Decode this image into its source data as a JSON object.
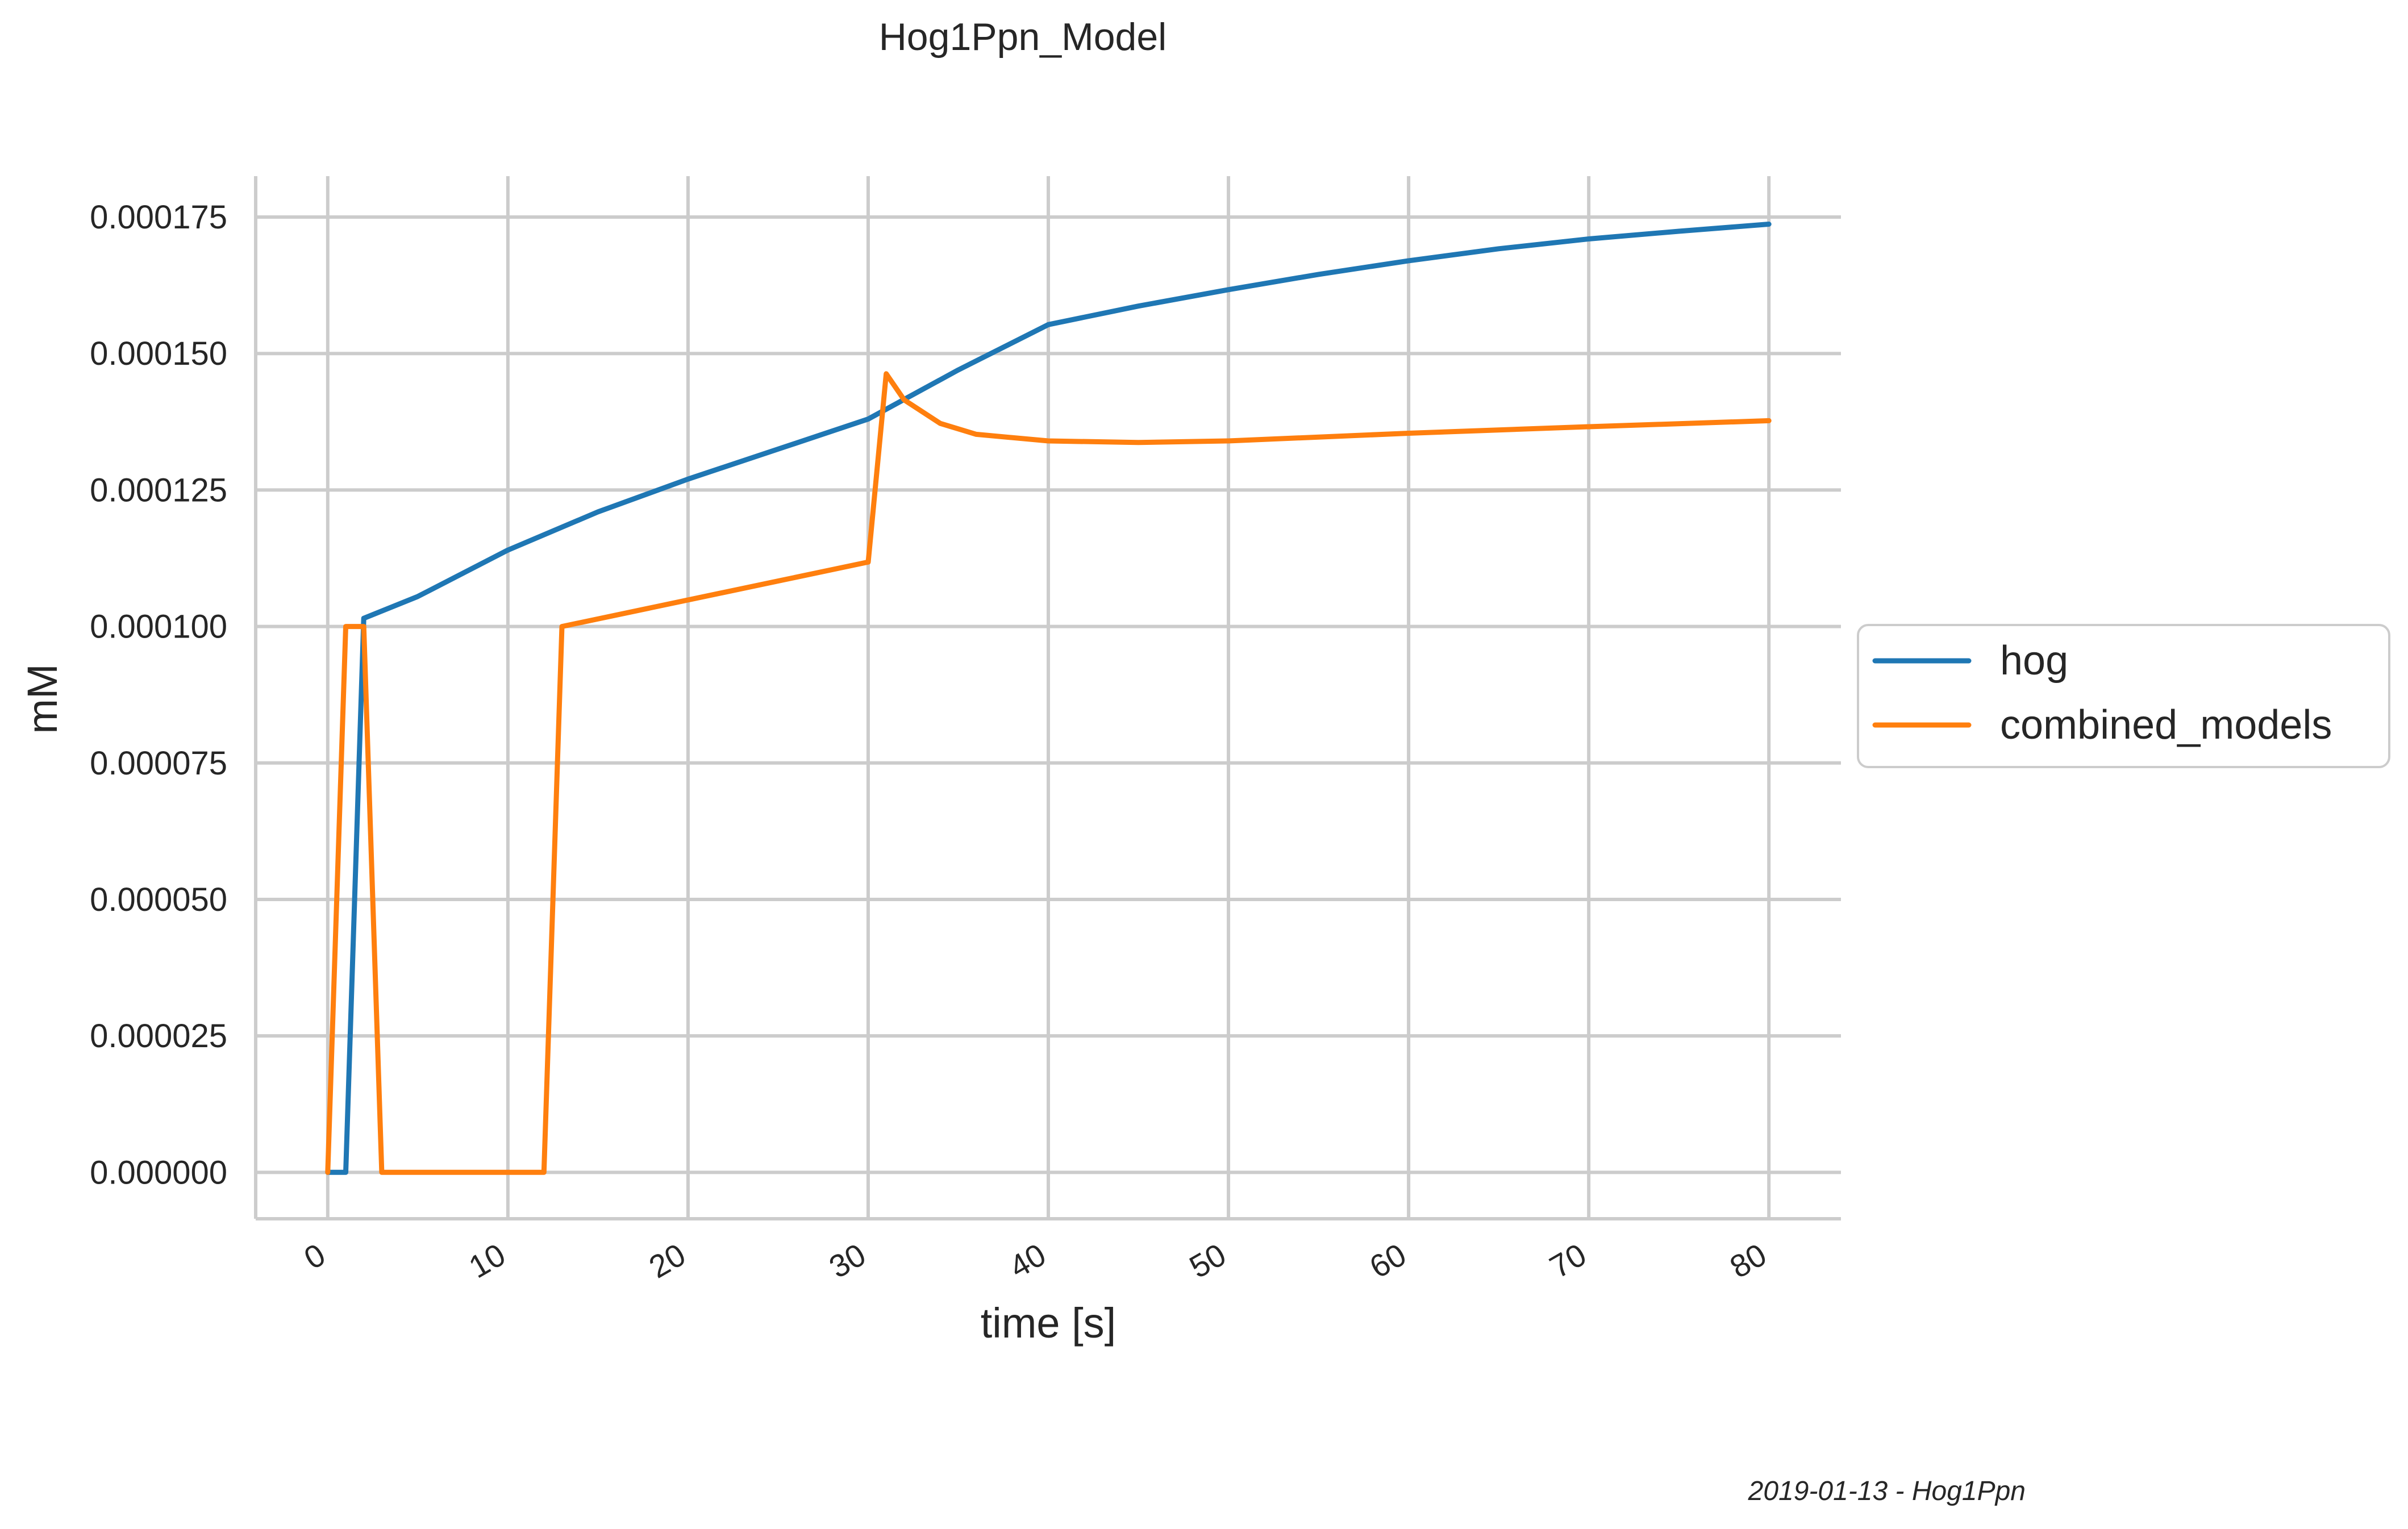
{
  "chart_data": {
    "type": "line",
    "title": "Hog1Ppn_Model",
    "xlabel": "time [s]",
    "ylabel": "mM",
    "xlim": [
      -4,
      84
    ],
    "ylim": [
      -8.5e-06,
      0.0001825
    ],
    "x_ticks": [
      0,
      10,
      20,
      30,
      40,
      50,
      60,
      70,
      80
    ],
    "x_tick_labels": [
      "0",
      "10",
      "20",
      "30",
      "40",
      "50",
      "60",
      "70",
      "80"
    ],
    "y_ticks": [
      0,
      2.5e-05,
      5e-05,
      7.5e-05,
      0.0001,
      0.000125,
      0.00015,
      0.000175
    ],
    "y_tick_labels": [
      "0.000000",
      "0.000025",
      "0.000050",
      "0.000075",
      "0.000100",
      "0.000125",
      "0.000150",
      "0.000175"
    ],
    "grid": true,
    "legend_position": "right, outside plot",
    "series": [
      {
        "name": "hog",
        "color": "#1f77b4",
        "points": [
          [
            0,
            0
          ],
          [
            1,
            0
          ],
          [
            2,
            0.0001015
          ],
          [
            5,
            0.0001055
          ],
          [
            10,
            0.000114
          ],
          [
            15,
            0.000121
          ],
          [
            20,
            0.000127
          ],
          [
            25,
            0.0001325
          ],
          [
            30,
            0.000138
          ],
          [
            35,
            0.000147
          ],
          [
            40,
            0.0001553
          ],
          [
            45,
            0.0001587
          ],
          [
            50,
            0.0001617
          ],
          [
            55,
            0.0001645
          ],
          [
            60,
            0.000167
          ],
          [
            65,
            0.0001692
          ],
          [
            70,
            0.000171
          ],
          [
            75,
            0.0001724
          ],
          [
            80,
            0.0001737
          ]
        ]
      },
      {
        "name": "combined_models",
        "color": "#ff7f0e",
        "points": [
          [
            0,
            0
          ],
          [
            1,
            0.0001
          ],
          [
            2,
            0.0001
          ],
          [
            3,
            0
          ],
          [
            12,
            0
          ],
          [
            13,
            0.0001
          ],
          [
            30,
            0.0001118
          ],
          [
            31,
            0.0001463
          ],
          [
            32,
            0.0001415
          ],
          [
            34,
            0.0001372
          ],
          [
            36,
            0.0001352
          ],
          [
            40,
            0.000134
          ],
          [
            45,
            0.0001337
          ],
          [
            50,
            0.000134
          ],
          [
            60,
            0.0001354
          ],
          [
            70,
            0.0001366
          ],
          [
            80,
            0.0001377
          ]
        ]
      }
    ]
  },
  "footer": {
    "caption": "2019-01-13 - Hog1Ppn"
  }
}
